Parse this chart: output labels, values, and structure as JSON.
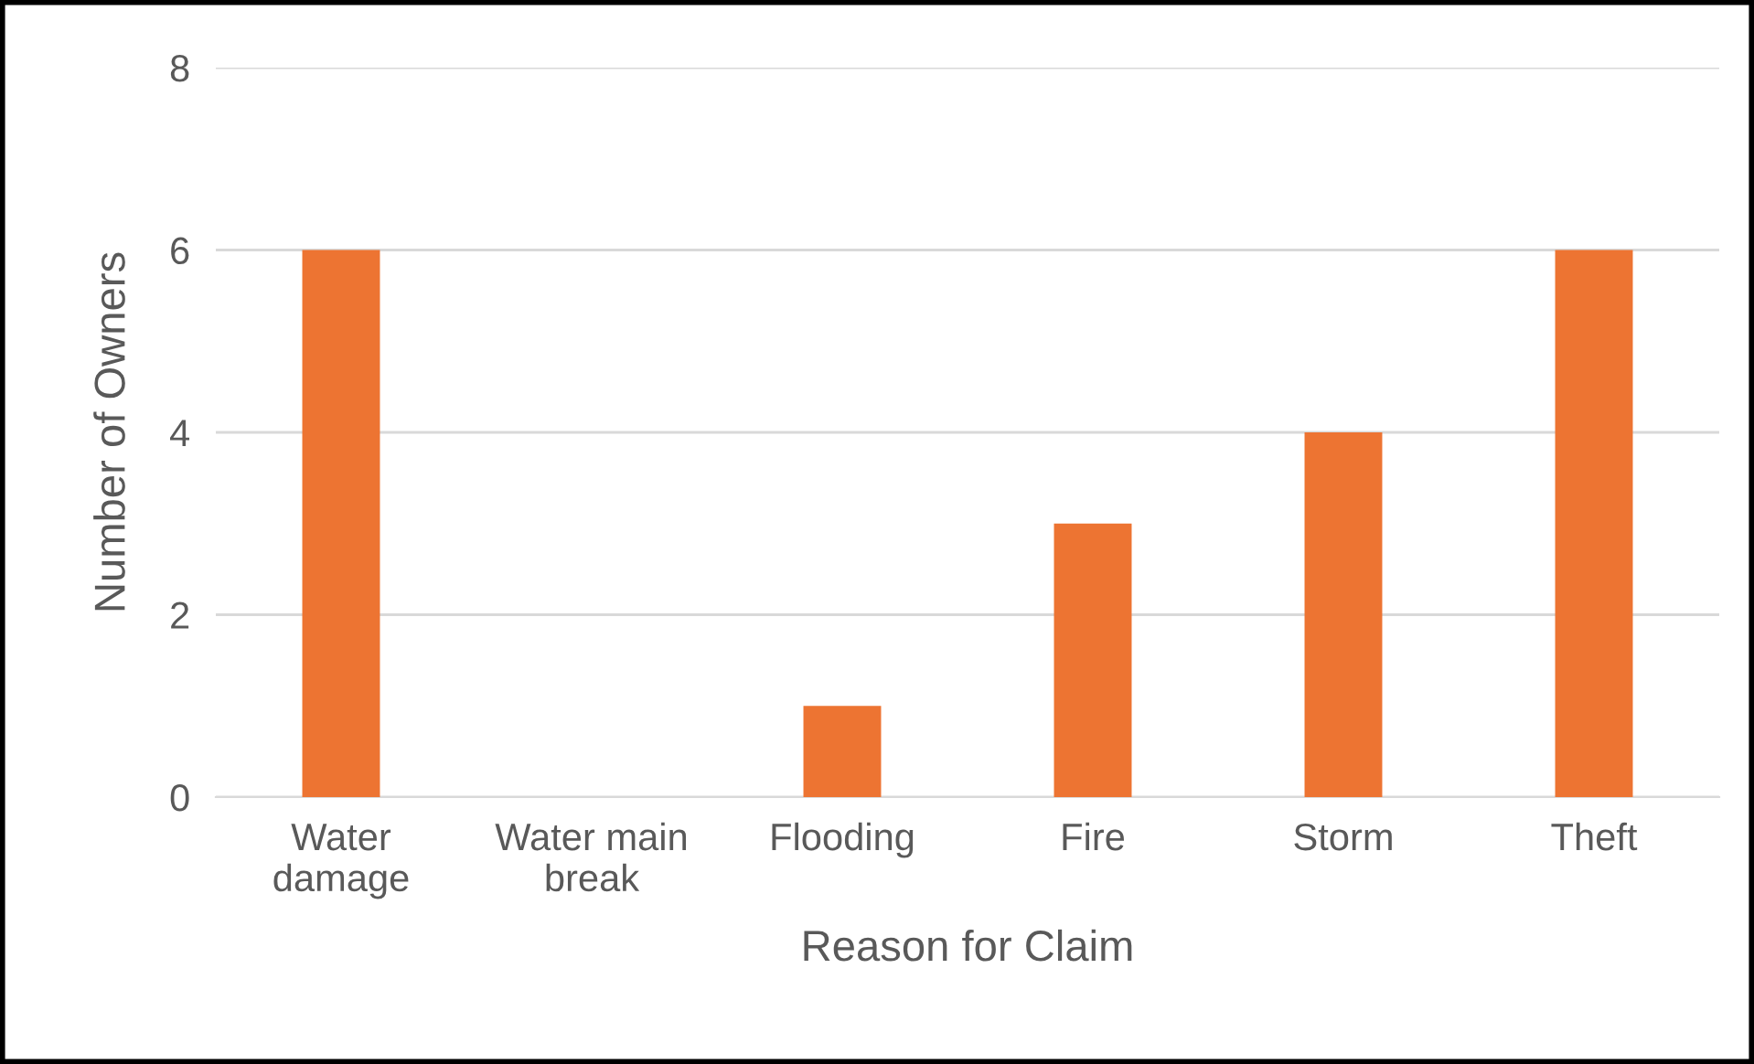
{
  "chart_data": {
    "type": "bar",
    "xlabel": "Reason for Claim",
    "ylabel": "Number of Owners",
    "categories": [
      "Water damage",
      "Water main break",
      "Flooding",
      "Fire",
      "Storm",
      "Theft"
    ],
    "values": [
      6,
      0,
      1,
      3,
      4,
      6
    ],
    "color": "#ed7432",
    "ylim": [
      0,
      8
    ],
    "yticks": [
      0,
      2,
      4,
      6,
      8
    ],
    "grid": "y"
  }
}
